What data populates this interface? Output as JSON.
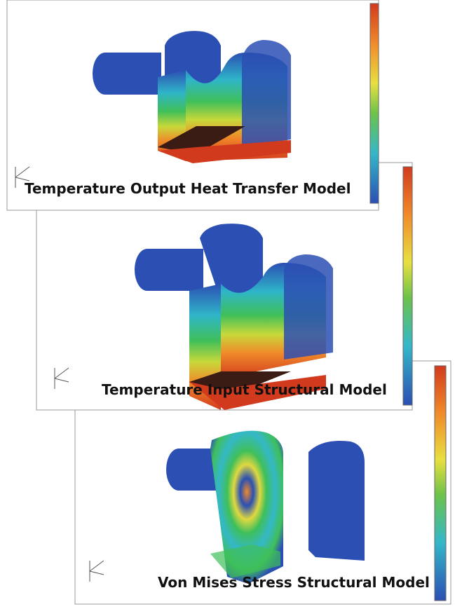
{
  "panels": [
    {
      "caption": "Temperature Output Heat Transfer Model"
    },
    {
      "caption": "Temperature Input Structural Model"
    },
    {
      "caption": "Von Mises Stress Structural Model"
    }
  ]
}
